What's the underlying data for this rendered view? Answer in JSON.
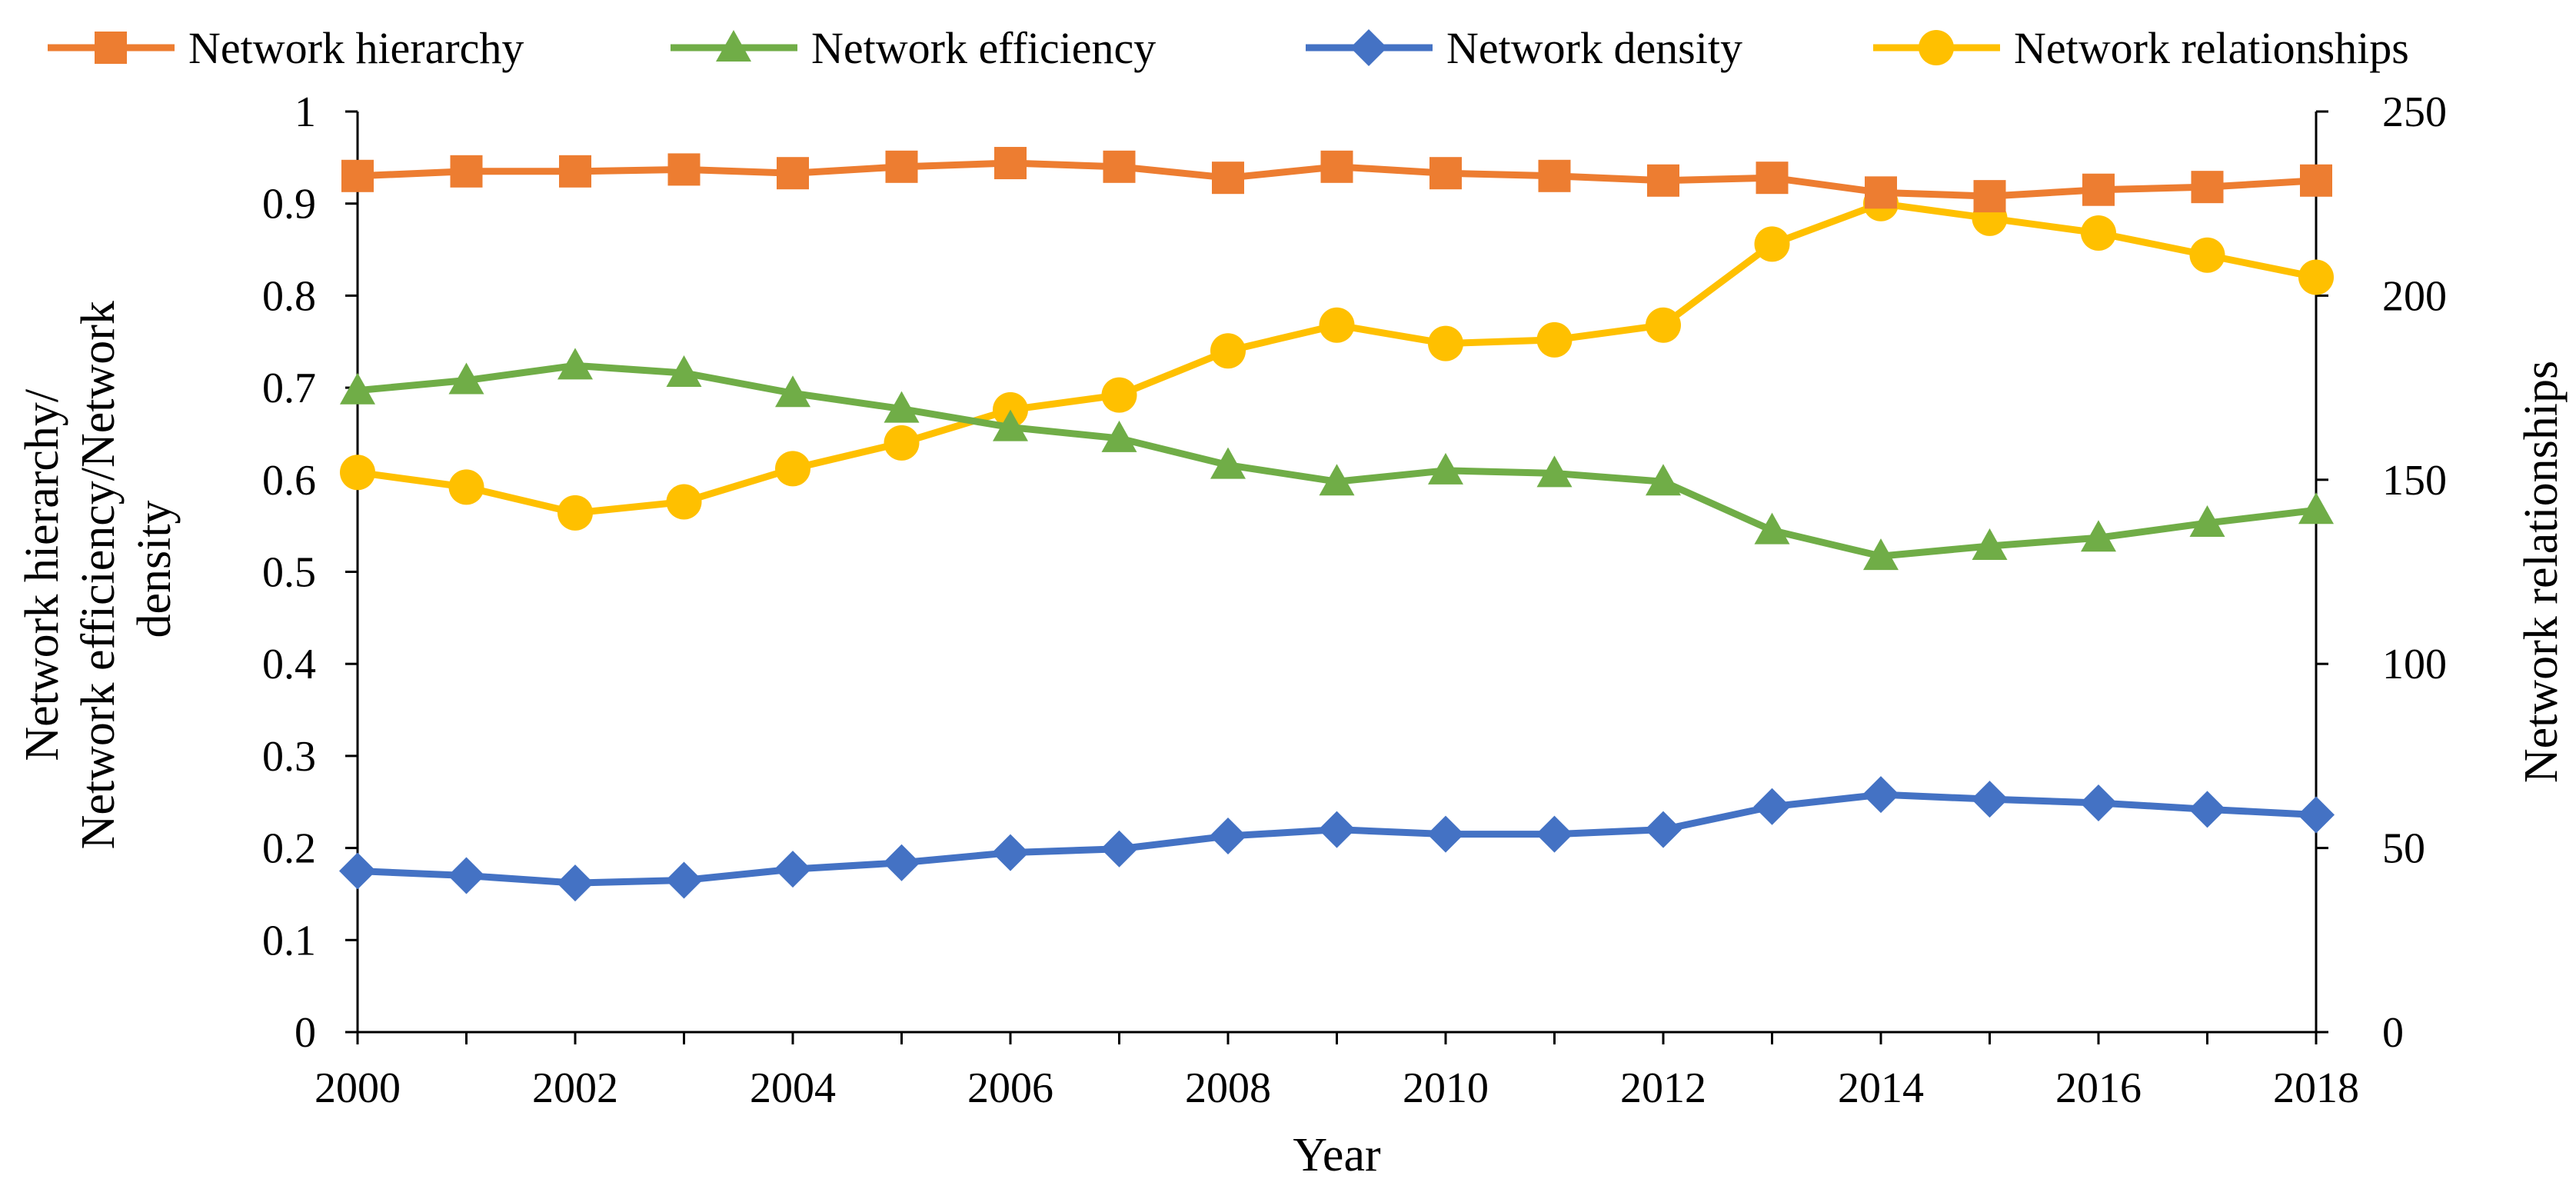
{
  "chart_data": {
    "type": "line",
    "title": "",
    "xlabel": "Year",
    "ylabel_left": "Network hierarchy/ Network efficiency/Network density",
    "ylabel_right": "Network relationships",
    "x": [
      2000,
      2001,
      2002,
      2003,
      2004,
      2005,
      2006,
      2007,
      2008,
      2009,
      2010,
      2011,
      2012,
      2013,
      2014,
      2015,
      2016,
      2017,
      2018
    ],
    "x_tick_labels": [
      "2000",
      "2002",
      "2004",
      "2006",
      "2008",
      "2010",
      "2012",
      "2014",
      "2016",
      "2018"
    ],
    "x_tick_values": [
      2000,
      2002,
      2004,
      2006,
      2008,
      2010,
      2012,
      2014,
      2016,
      2018
    ],
    "ylim_left": [
      0,
      1
    ],
    "y_left_tick_labels": [
      "0",
      "0.1",
      "0.2",
      "0.3",
      "0.4",
      "0.5",
      "0.6",
      "0.7",
      "0.8",
      "0.9",
      "1"
    ],
    "y_left_tick_values": [
      0,
      0.1,
      0.2,
      0.3,
      0.4,
      0.5,
      0.6,
      0.7,
      0.8,
      0.9,
      1
    ],
    "ylim_right": [
      0,
      250
    ],
    "y_right_tick_labels": [
      "0",
      "50",
      "100",
      "150",
      "200",
      "250"
    ],
    "y_right_tick_values": [
      0,
      50,
      100,
      150,
      200,
      250
    ],
    "legend_position": "top",
    "grid": false,
    "series": [
      {
        "name": "Network hierarchy",
        "axis": "left",
        "marker": "square",
        "color": "#ED7D31",
        "values": [
          0.93,
          0.935,
          0.935,
          0.937,
          0.933,
          0.94,
          0.944,
          0.94,
          0.928,
          0.94,
          0.933,
          0.93,
          0.925,
          0.928,
          0.912,
          0.908,
          0.915,
          0.918,
          0.925
        ]
      },
      {
        "name": "Network efficiency",
        "axis": "left",
        "marker": "triangle",
        "color": "#70AD47",
        "values": [
          0.697,
          0.708,
          0.724,
          0.716,
          0.694,
          0.677,
          0.657,
          0.645,
          0.616,
          0.598,
          0.61,
          0.607,
          0.598,
          0.545,
          0.517,
          0.528,
          0.537,
          0.553,
          0.567
        ]
      },
      {
        "name": "Network density",
        "axis": "left",
        "marker": "diamond",
        "color": "#4472C4",
        "values": [
          0.175,
          0.17,
          0.162,
          0.165,
          0.177,
          0.184,
          0.195,
          0.199,
          0.213,
          0.22,
          0.215,
          0.215,
          0.22,
          0.245,
          0.258,
          0.253,
          0.249,
          0.242,
          0.236
        ]
      },
      {
        "name": "Network relationships",
        "axis": "right",
        "marker": "circle",
        "color": "#FFC000",
        "values": [
          152,
          148,
          141,
          144,
          153,
          160,
          169,
          173,
          185,
          192,
          187,
          188,
          192,
          214,
          225,
          221,
          217,
          211,
          205
        ]
      }
    ]
  }
}
